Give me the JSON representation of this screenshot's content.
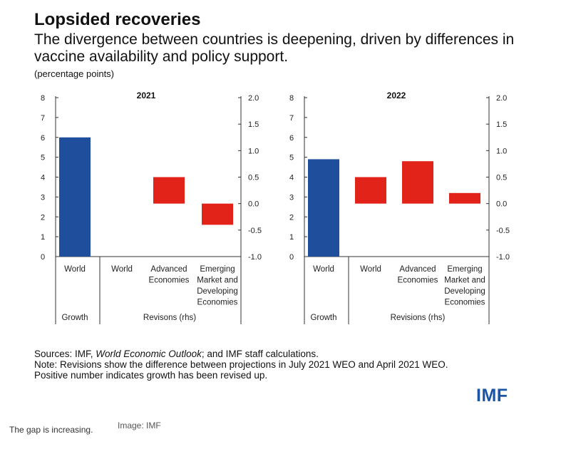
{
  "title": "Lopsided recoveries",
  "subtitle": "The divergence between countries is deepening, driven by differences in vaccine availability and policy support.",
  "units": "(percentage points)",
  "sources": {
    "prefix": "Sources: IMF, ",
    "italic": "World Economic Outlook",
    "suffix": "; and IMF staff calculations.",
    "note1": "Note: Revisions show the difference between projections in July 2021 WEO and April 2021 WEO.",
    "note2": "Positive number indicates growth has been revised up."
  },
  "logo": "IMF",
  "caption": "The gap is increasing.",
  "credit": "Image: IMF",
  "colors": {
    "growth": "#1f4e9c",
    "revision": "#e2231a",
    "axis": "#333333"
  },
  "chart_data": [
    {
      "type": "bar",
      "title": "2021",
      "left_axis": {
        "ylim": [
          0,
          8
        ],
        "ticks": [
          "0",
          "1",
          "2",
          "3",
          "4",
          "5",
          "6",
          "7",
          "8"
        ]
      },
      "right_axis": {
        "ylim": [
          -1.0,
          2.0
        ],
        "ticks": [
          "-1.0",
          "-0.5",
          "0.0",
          "0.5",
          "1.0",
          "1.5",
          "2.0"
        ]
      },
      "groups": {
        "growth": "Growth",
        "revisions": "Revisons (rhs)"
      },
      "categories": [
        {
          "label": [
            "World"
          ],
          "group": "growth",
          "axis": "left",
          "value": 6.0
        },
        {
          "label": [
            "World"
          ],
          "group": "revisions",
          "axis": "right",
          "value": 0.0
        },
        {
          "label": [
            "Advanced",
            "Economies"
          ],
          "group": "revisions",
          "axis": "right",
          "value": 0.5
        },
        {
          "label": [
            "Emerging",
            "Market and",
            "Developing",
            "Economies"
          ],
          "group": "revisions",
          "axis": "right",
          "value": -0.4
        }
      ]
    },
    {
      "type": "bar",
      "title": "2022",
      "left_axis": {
        "ylim": [
          0,
          8
        ],
        "ticks": [
          "0",
          "1",
          "2",
          "3",
          "4",
          "5",
          "6",
          "7",
          "8"
        ]
      },
      "right_axis": {
        "ylim": [
          -1.0,
          2.0
        ],
        "ticks": [
          "-1.0",
          "-0.5",
          "0.0",
          "0.5",
          "1.0",
          "1.5",
          "2.0"
        ]
      },
      "groups": {
        "growth": "Growth",
        "revisions": "Revisions (rhs)"
      },
      "categories": [
        {
          "label": [
            "World"
          ],
          "group": "growth",
          "axis": "left",
          "value": 4.9
        },
        {
          "label": [
            "World"
          ],
          "group": "revisions",
          "axis": "right",
          "value": 0.5
        },
        {
          "label": [
            "Advanced",
            "Economies"
          ],
          "group": "revisions",
          "axis": "right",
          "value": 0.8
        },
        {
          "label": [
            "Emerging",
            "Market and",
            "Developing",
            "Economies"
          ],
          "group": "revisions",
          "axis": "right",
          "value": 0.2
        }
      ]
    }
  ]
}
